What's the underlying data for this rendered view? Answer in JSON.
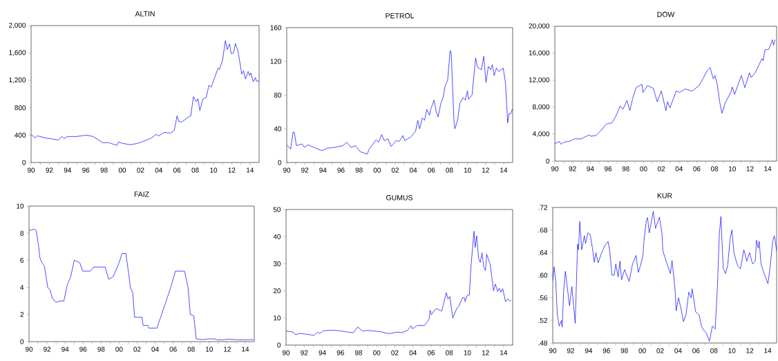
{
  "chart_data": [
    {
      "type": "line",
      "title": "ALTIN",
      "color": "#0000ff",
      "x": [
        1990.0,
        1990.43,
        1990.69,
        1991.5,
        1992.5,
        1993.0,
        1993.4,
        1993.6,
        1994.0,
        1995.0,
        1996.06,
        1996.8,
        1997.85,
        1998.5,
        1999.4,
        1999.6,
        2000.0,
        2000.9,
        2001.7,
        2002.7,
        2003.2,
        2003.7,
        2004.0,
        2004.6,
        2005.3,
        2005.7,
        2006.0,
        2006.2,
        2006.5,
        2007.3,
        2007.5,
        2007.8,
        2008.1,
        2008.3,
        2008.5,
        2008.85,
        2009.2,
        2009.5,
        2009.75,
        2010.5,
        2010.65,
        2011.0,
        2011.3,
        2011.5,
        2011.75,
        2011.95,
        2012.2,
        2012.4,
        2012.7,
        2013.1,
        2013.3,
        2013.5,
        2013.8,
        2013.95,
        2014.1,
        2014.35,
        2014.6,
        2014.7,
        2015.0
      ],
      "values": [
        410,
        360,
        390,
        360,
        340,
        330,
        380,
        350,
        380,
        380,
        400,
        380,
        290,
        290,
        250,
        300,
        280,
        260,
        280,
        330,
        360,
        410,
        390,
        440,
        430,
        470,
        680,
        600,
        590,
        670,
        680,
        960,
        890,
        930,
        760,
        930,
        950,
        1130,
        1100,
        1380,
        1360,
        1500,
        1780,
        1650,
        1730,
        1590,
        1600,
        1740,
        1620,
        1290,
        1340,
        1220,
        1330,
        1270,
        1310,
        1180,
        1240,
        1190,
        1190
      ],
      "xlim": [
        1990,
        2015
      ],
      "ylim": [
        0,
        2000
      ],
      "xticks": [
        {
          "value": 1990,
          "label": "90"
        },
        {
          "value": 1991,
          "label": null
        },
        {
          "value": 1992,
          "label": "92"
        },
        {
          "value": 1993,
          "label": null
        },
        {
          "value": 1994,
          "label": "94"
        },
        {
          "value": 1995,
          "label": null
        },
        {
          "value": 1996,
          "label": "96"
        },
        {
          "value": 1997,
          "label": null
        },
        {
          "value": 1998,
          "label": "98"
        },
        {
          "value": 1999,
          "label": null
        },
        {
          "value": 2000,
          "label": "00"
        },
        {
          "value": 2001,
          "label": null
        },
        {
          "value": 2002,
          "label": "02"
        },
        {
          "value": 2003,
          "label": null
        },
        {
          "value": 2004,
          "label": "04"
        },
        {
          "value": 2005,
          "label": null
        },
        {
          "value": 2006,
          "label": "06"
        },
        {
          "value": 2007,
          "label": null
        },
        {
          "value": 2008,
          "label": "08"
        },
        {
          "value": 2009,
          "label": null
        },
        {
          "value": 2010,
          "label": "10"
        },
        {
          "value": 2011,
          "label": null
        },
        {
          "value": 2012,
          "label": "12"
        },
        {
          "value": 2013,
          "label": null
        },
        {
          "value": 2014,
          "label": "14"
        }
      ],
      "yticks": [
        0,
        400,
        800,
        {
          "value": 1200,
          "label": "1,200"
        },
        {
          "value": 1600,
          "label": "1,600"
        },
        {
          "value": 2000,
          "label": "2,000"
        }
      ]
    },
    {
      "type": "line",
      "title": "PETROL",
      "color": "#0000ff",
      "x": [
        1990.0,
        1990.43,
        1990.7,
        1990.83,
        1991.07,
        1991.7,
        1991.95,
        1992.35,
        1993.0,
        1993.9,
        1994.5,
        1995.3,
        1996.2,
        1996.65,
        1997.1,
        1997.6,
        1998.1,
        1998.9,
        1999.13,
        1999.9,
        2000.15,
        2000.5,
        2000.8,
        2001.2,
        2001.55,
        2002.1,
        2002.45,
        2002.85,
        2003.05,
        2003.7,
        2004.25,
        2004.5,
        2004.7,
        2005.0,
        2005.25,
        2005.5,
        2005.8,
        2005.9,
        2006.3,
        2006.55,
        2006.75,
        2007.05,
        2007.3,
        2007.55,
        2007.8,
        2008.08,
        2008.2,
        2008.5,
        2008.6,
        2008.9,
        2009.15,
        2009.5,
        2009.75,
        2010.0,
        2010.1,
        2010.5,
        2010.9,
        2011.1,
        2011.55,
        2011.8,
        2012.05,
        2012.3,
        2012.55,
        2012.75,
        2012.95,
        2013.2,
        2013.45,
        2013.95,
        2014.2,
        2014.45,
        2014.6,
        2014.78,
        2014.95,
        2015.0
      ],
      "values": [
        21,
        16,
        36,
        36,
        20,
        22,
        18,
        21,
        18,
        14,
        17,
        18,
        20,
        24,
        18,
        20,
        13,
        10,
        16,
        27,
        24,
        33,
        26,
        28,
        19,
        26,
        25,
        32,
        26,
        30,
        37,
        50,
        40,
        53,
        50,
        63,
        56,
        62,
        74,
        60,
        54,
        70,
        77,
        92,
        97,
        133,
        130,
        50,
        40,
        50,
        70,
        77,
        74,
        85,
        75,
        80,
        124,
        113,
        110,
        126,
        95,
        114,
        110,
        116,
        103,
        112,
        108,
        112,
        95,
        47,
        58,
        58,
        63,
        62
      ],
      "xlim": [
        1990,
        2015
      ],
      "ylim": [
        0,
        160
      ],
      "xticks": [
        {
          "value": 1990,
          "label": "90"
        },
        {
          "value": 1991,
          "label": null
        },
        {
          "value": 1992,
          "label": "92"
        },
        {
          "value": 1993,
          "label": null
        },
        {
          "value": 1994,
          "label": "94"
        },
        {
          "value": 1995,
          "label": null
        },
        {
          "value": 1996,
          "label": "96"
        },
        {
          "value": 1997,
          "label": null
        },
        {
          "value": 1998,
          "label": "98"
        },
        {
          "value": 1999,
          "label": null
        },
        {
          "value": 2000,
          "label": "00"
        },
        {
          "value": 2001,
          "label": null
        },
        {
          "value": 2002,
          "label": "02"
        },
        {
          "value": 2003,
          "label": null
        },
        {
          "value": 2004,
          "label": "04"
        },
        {
          "value": 2005,
          "label": null
        },
        {
          "value": 2006,
          "label": "06"
        },
        {
          "value": 2007,
          "label": null
        },
        {
          "value": 2008,
          "label": "08"
        },
        {
          "value": 2009,
          "label": null
        },
        {
          "value": 2010,
          "label": "10"
        },
        {
          "value": 2011,
          "label": null
        },
        {
          "value": 2012,
          "label": "12"
        },
        {
          "value": 2013,
          "label": null
        },
        {
          "value": 2014,
          "label": "14"
        }
      ],
      "yticks": [
        0,
        40,
        80,
        120,
        160
      ]
    },
    {
      "type": "line",
      "title": "DOW",
      "color": "#0000ff",
      "x": [
        1990.0,
        1990.52,
        1990.72,
        1991.03,
        1991.81,
        1992.19,
        1992.97,
        1993.87,
        1994.0,
        1994.65,
        1995.16,
        1995.81,
        1996.45,
        1996.97,
        1997.35,
        1997.69,
        1998.13,
        1998.46,
        1998.77,
        1999.16,
        1999.81,
        1999.94,
        2000.45,
        2001.1,
        2001.54,
        2002.0,
        2002.52,
        2002.7,
        2002.98,
        2003.68,
        2004.06,
        2004.71,
        2005.48,
        2006.26,
        2006.77,
        2007.16,
        2007.5,
        2007.86,
        2008.06,
        2008.32,
        2008.58,
        2008.84,
        2009.23,
        2009.87,
        2010.0,
        2010.26,
        2011.03,
        2011.42,
        2011.94,
        2012.14,
        2012.58,
        2013.35,
        2013.48,
        2013.69,
        2014.13,
        2014.52,
        2014.65,
        2014.83
      ],
      "values": [
        2600,
        2900,
        2500,
        2800,
        3000,
        3300,
        3300,
        3900,
        3700,
        3800,
        4500,
        5500,
        5700,
        6900,
        8200,
        7700,
        9000,
        7500,
        9300,
        10900,
        11400,
        10200,
        11200,
        10800,
        8800,
        10400,
        7500,
        8800,
        7900,
        10400,
        10200,
        10700,
        10400,
        11200,
        12400,
        13400,
        13900,
        12200,
        12700,
        11300,
        8800,
        7100,
        8700,
        10300,
        11000,
        9900,
        12700,
        10900,
        13100,
        12400,
        13100,
        15200,
        14900,
        16500,
        16600,
        18000,
        17200,
        18000
      ],
      "xlim": [
        1990,
        2015
      ],
      "ylim": [
        0,
        20000
      ],
      "xticks": [
        {
          "value": 1990,
          "label": "90"
        },
        {
          "value": 1991,
          "label": null
        },
        {
          "value": 1992,
          "label": "92"
        },
        {
          "value": 1993,
          "label": null
        },
        {
          "value": 1994,
          "label": "94"
        },
        {
          "value": 1995,
          "label": null
        },
        {
          "value": 1996,
          "label": "96"
        },
        {
          "value": 1997,
          "label": null
        },
        {
          "value": 1998,
          "label": "98"
        },
        {
          "value": 1999,
          "label": null
        },
        {
          "value": 2000,
          "label": "00"
        },
        {
          "value": 2001,
          "label": null
        },
        {
          "value": 2002,
          "label": "02"
        },
        {
          "value": 2003,
          "label": null
        },
        {
          "value": 2004,
          "label": "04"
        },
        {
          "value": 2005,
          "label": null
        },
        {
          "value": 2006,
          "label": "06"
        },
        {
          "value": 2007,
          "label": null
        },
        {
          "value": 2008,
          "label": "08"
        },
        {
          "value": 2009,
          "label": null
        },
        {
          "value": 2010,
          "label": "10"
        },
        {
          "value": 2011,
          "label": null
        },
        {
          "value": 2012,
          "label": "12"
        },
        {
          "value": 2013,
          "label": null
        },
        {
          "value": 2014,
          "label": "14"
        }
      ],
      "yticks": [
        0,
        {
          "value": 4000,
          "label": "4,000"
        },
        {
          "value": 8000,
          "label": "8,000"
        },
        {
          "value": 12000,
          "label": "12,000"
        },
        {
          "value": 16000,
          "label": "16,000"
        },
        {
          "value": 20000,
          "label": "20,000"
        }
      ]
    },
    {
      "type": "line",
      "title": "FAIZ",
      "color": "#0000ff",
      "x": [
        1990.0,
        1990.55,
        1990.8,
        1991.07,
        1991.2,
        1991.45,
        1991.7,
        1992.08,
        1992.34,
        1992.6,
        1992.97,
        1993.49,
        1993.87,
        1994.25,
        1994.63,
        1995.02,
        1995.4,
        1995.65,
        1995.96,
        1996.8,
        1997.18,
        1998.46,
        1998.84,
        1999.35,
        1999.6,
        1999.99,
        2000.32,
        2000.75,
        2001.0,
        2001.26,
        2001.51,
        2001.72,
        2002.54,
        2002.66,
        2003.18,
        2003.3,
        2004.2,
        2004.71,
        2005.73,
        2006.24,
        2007.26,
        2007.65,
        2007.9,
        2008.29,
        2008.55,
        2009.31,
        2009.95,
        2010.59,
        2010.97,
        2011.6,
        2011.99,
        2012.63,
        2013.14,
        2013.9,
        2014.93
      ],
      "values": [
        8.2,
        8.3,
        8.2,
        7.0,
        6.2,
        5.8,
        5.6,
        4.0,
        3.8,
        3.2,
        2.9,
        3.0,
        3.0,
        4.2,
        4.8,
        6.0,
        5.9,
        5.8,
        5.2,
        5.2,
        5.5,
        5.5,
        4.6,
        4.8,
        5.2,
        5.8,
        6.5,
        6.5,
        5.3,
        4.0,
        3.6,
        1.8,
        1.8,
        1.2,
        1.2,
        1.0,
        1.0,
        2.0,
        4.0,
        5.2,
        5.2,
        4.0,
        2.0,
        1.9,
        0.2,
        0.15,
        0.2,
        0.2,
        0.13,
        0.13,
        0.18,
        0.16,
        0.13,
        0.13,
        0.15
      ],
      "xlim": [
        1990,
        2015
      ],
      "ylim": [
        0,
        10
      ],
      "xticks": [
        {
          "value": 1990,
          "label": "90"
        },
        {
          "value": 1991,
          "label": null
        },
        {
          "value": 1992,
          "label": "92"
        },
        {
          "value": 1993,
          "label": null
        },
        {
          "value": 1994,
          "label": "94"
        },
        {
          "value": 1995,
          "label": null
        },
        {
          "value": 1996,
          "label": "96"
        },
        {
          "value": 1997,
          "label": null
        },
        {
          "value": 1998,
          "label": "98"
        },
        {
          "value": 1999,
          "label": null
        },
        {
          "value": 2000,
          "label": "00"
        },
        {
          "value": 2001,
          "label": null
        },
        {
          "value": 2002,
          "label": "02"
        },
        {
          "value": 2003,
          "label": null
        },
        {
          "value": 2004,
          "label": "04"
        },
        {
          "value": 2005,
          "label": null
        },
        {
          "value": 2006,
          "label": "06"
        },
        {
          "value": 2007,
          "label": null
        },
        {
          "value": 2008,
          "label": "08"
        },
        {
          "value": 2009,
          "label": null
        },
        {
          "value": 2010,
          "label": "10"
        },
        {
          "value": 2011,
          "label": null
        },
        {
          "value": 2012,
          "label": "12"
        },
        {
          "value": 2013,
          "label": null
        },
        {
          "value": 2014,
          "label": "14"
        }
      ],
      "yticks": [
        0,
        2,
        4,
        6,
        8,
        10
      ]
    },
    {
      "type": "line",
      "title": "GUMUS",
      "color": "#0000ff",
      "x": [
        1990.0,
        1990.8,
        1991.06,
        1991.44,
        1992.07,
        1993.09,
        1993.47,
        1993.72,
        1994.1,
        1995.12,
        1995.88,
        1996.64,
        1997.4,
        1997.91,
        1998.41,
        1998.92,
        1999.68,
        2000.45,
        2001.33,
        2002.22,
        2002.73,
        2003.37,
        2003.8,
        2003.95,
        2004.5,
        2005.26,
        2005.77,
        2005.9,
        2006.03,
        2006.54,
        2007.17,
        2007.68,
        2007.86,
        2008.06,
        2008.39,
        2008.83,
        2009.08,
        2009.46,
        2009.66,
        2009.76,
        2009.97,
        2010.22,
        2010.4,
        2010.73,
        2010.86,
        2011.03,
        2011.24,
        2011.42,
        2011.62,
        2011.8,
        2012.0,
        2012.13,
        2012.51,
        2012.89,
        2013.09,
        2013.35,
        2013.52,
        2013.7,
        2013.9,
        2014.21,
        2014.41,
        2014.66,
        2014.84
      ],
      "values": [
        5.2,
        4.8,
        3.8,
        4.3,
        4.1,
        3.6,
        4.8,
        4.3,
        5.3,
        5.5,
        5.3,
        4.9,
        4.5,
        6.7,
        5.2,
        5.4,
        5.2,
        4.9,
        4.2,
        4.8,
        4.6,
        5.3,
        7.1,
        6.0,
        7.3,
        7.2,
        9.5,
        12.8,
        11.2,
        13.5,
        12.5,
        19.3,
        17.0,
        18.0,
        10.0,
        13.5,
        14.5,
        17.5,
        17.5,
        16.0,
        18.3,
        18.5,
        29.0,
        42.0,
        36.0,
        40.3,
        32.0,
        30.5,
        34.0,
        29.0,
        27.5,
        33.5,
        30.0,
        20.0,
        22.5,
        19.7,
        21.0,
        19.5,
        20.8,
        16.0,
        17.0,
        16.3,
        16.5
      ],
      "xlim": [
        1990,
        2015
      ],
      "ylim": [
        0,
        50
      ],
      "xticks": [
        {
          "value": 1990,
          "label": "90"
        },
        {
          "value": 1991,
          "label": null
        },
        {
          "value": 1992,
          "label": "92"
        },
        {
          "value": 1993,
          "label": null
        },
        {
          "value": 1994,
          "label": "94"
        },
        {
          "value": 1995,
          "label": null
        },
        {
          "value": 1996,
          "label": "96"
        },
        {
          "value": 1997,
          "label": null
        },
        {
          "value": 1998,
          "label": "98"
        },
        {
          "value": 1999,
          "label": null
        },
        {
          "value": 2000,
          "label": "00"
        },
        {
          "value": 2001,
          "label": null
        },
        {
          "value": 2002,
          "label": "02"
        },
        {
          "value": 2003,
          "label": null
        },
        {
          "value": 2004,
          "label": "04"
        },
        {
          "value": 2005,
          "label": null
        },
        {
          "value": 2006,
          "label": "06"
        },
        {
          "value": 2007,
          "label": null
        },
        {
          "value": 2008,
          "label": "08"
        },
        {
          "value": 2009,
          "label": null
        },
        {
          "value": 2010,
          "label": "10"
        },
        {
          "value": 2011,
          "label": null
        },
        {
          "value": 2012,
          "label": "12"
        },
        {
          "value": 2013,
          "label": null
        },
        {
          "value": 2014,
          "label": "14"
        }
      ],
      "yticks": [
        0,
        10,
        20,
        30,
        40,
        50
      ]
    },
    {
      "type": "line",
      "title": "KUR",
      "color": "#0000ff",
      "x": [
        1990.0,
        1990.15,
        1990.33,
        1990.51,
        1990.72,
        1990.97,
        1991.05,
        1991.23,
        1991.41,
        1991.61,
        1991.87,
        1992.13,
        1992.51,
        1992.77,
        1992.87,
        1993.02,
        1993.23,
        1993.53,
        1993.66,
        1993.92,
        1994.18,
        1994.43,
        1994.64,
        1994.82,
        1995.07,
        1995.46,
        1995.84,
        1996.17,
        1996.35,
        1996.61,
        1996.86,
        1997.04,
        1997.3,
        1997.5,
        1997.68,
        1998.02,
        1998.27,
        1998.53,
        1998.91,
        1999.3,
        1999.55,
        1999.81,
        2000.07,
        2000.19,
        2000.45,
        2000.58,
        2000.78,
        2001.22,
        2001.48,
        2001.91,
        2002.19,
        2002.3,
        2002.76,
        2003.14,
        2003.32,
        2003.66,
        2003.78,
        2004.04,
        2004.29,
        2004.6,
        2004.88,
        2005.19,
        2005.45,
        2005.57,
        2005.96,
        2006.34,
        2006.6,
        2006.85,
        2007.16,
        2007.49,
        2007.83,
        2008.14,
        2008.39,
        2008.6,
        2008.78,
        2009.03,
        2009.29,
        2009.54,
        2009.8,
        2010.0,
        2010.24,
        2010.49,
        2010.7,
        2010.95,
        2011.34,
        2011.67,
        2011.98,
        2012.31,
        2012.62,
        2012.75,
        2012.95,
        2013.05,
        2013.26,
        2013.51,
        2014.03,
        2014.28,
        2014.54,
        2014.74,
        2014.85,
        2015.0
      ],
      "values": [
        0.59,
        0.615,
        0.59,
        0.53,
        0.51,
        0.52,
        0.508,
        0.575,
        0.607,
        0.58,
        0.546,
        0.58,
        0.515,
        0.655,
        0.645,
        0.695,
        0.645,
        0.67,
        0.656,
        0.675,
        0.672,
        0.648,
        0.623,
        0.64,
        0.622,
        0.64,
        0.653,
        0.66,
        0.645,
        0.6,
        0.6,
        0.62,
        0.597,
        0.625,
        0.592,
        0.61,
        0.6,
        0.589,
        0.62,
        0.635,
        0.605,
        0.618,
        0.635,
        0.662,
        0.697,
        0.702,
        0.675,
        0.713,
        0.683,
        0.703,
        0.675,
        0.643,
        0.62,
        0.603,
        0.626,
        0.575,
        0.537,
        0.56,
        0.543,
        0.518,
        0.53,
        0.57,
        0.56,
        0.576,
        0.535,
        0.53,
        0.51,
        0.503,
        0.497,
        0.483,
        0.51,
        0.505,
        0.58,
        0.672,
        0.704,
        0.612,
        0.603,
        0.618,
        0.664,
        0.68,
        0.64,
        0.625,
        0.615,
        0.611,
        0.645,
        0.625,
        0.64,
        0.62,
        0.625,
        0.662,
        0.648,
        0.66,
        0.62,
        0.607,
        0.585,
        0.615,
        0.658,
        0.67,
        0.66,
        0.643
      ],
      "xlim": [
        1990,
        2015
      ],
      "ylim": [
        0.48,
        0.72
      ],
      "xticks": [
        {
          "value": 1990,
          "label": "90"
        },
        {
          "value": 1991,
          "label": null
        },
        {
          "value": 1992,
          "label": "92"
        },
        {
          "value": 1993,
          "label": null
        },
        {
          "value": 1994,
          "label": "94"
        },
        {
          "value": 1995,
          "label": null
        },
        {
          "value": 1996,
          "label": "96"
        },
        {
          "value": 1997,
          "label": null
        },
        {
          "value": 1998,
          "label": "98"
        },
        {
          "value": 1999,
          "label": null
        },
        {
          "value": 2000,
          "label": "00"
        },
        {
          "value": 2001,
          "label": null
        },
        {
          "value": 2002,
          "label": "02"
        },
        {
          "value": 2003,
          "label": null
        },
        {
          "value": 2004,
          "label": "04"
        },
        {
          "value": 2005,
          "label": null
        },
        {
          "value": 2006,
          "label": "06"
        },
        {
          "value": 2007,
          "label": null
        },
        {
          "value": 2008,
          "label": "08"
        },
        {
          "value": 2009,
          "label": null
        },
        {
          "value": 2010,
          "label": "10"
        },
        {
          "value": 2011,
          "label": null
        },
        {
          "value": 2012,
          "label": "12"
        },
        {
          "value": 2013,
          "label": null
        },
        {
          "value": 2014,
          "label": "14"
        }
      ],
      "yticks": [
        {
          "value": 0.48,
          "label": ".48"
        },
        {
          "value": 0.52,
          "label": ".52"
        },
        {
          "value": 0.56,
          "label": ".56"
        },
        {
          "value": 0.6,
          "label": ".60"
        },
        {
          "value": 0.64,
          "label": ".64"
        },
        {
          "value": 0.68,
          "label": ".68"
        },
        {
          "value": 0.72,
          "label": ".72"
        }
      ]
    }
  ]
}
